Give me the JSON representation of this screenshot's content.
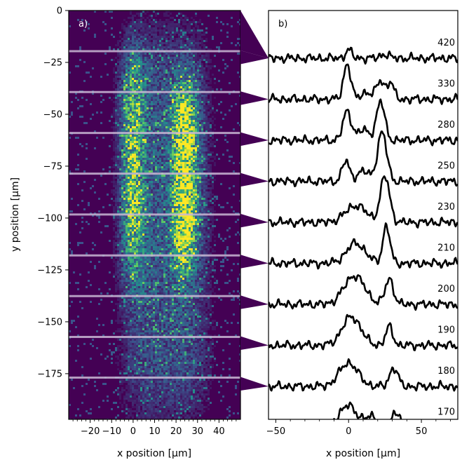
{
  "chart_data": [
    {
      "panel": "a)",
      "type": "heatmap",
      "xlabel": "x position [µm]",
      "ylabel": "y position [µm]",
      "xlim": [
        -30,
        50
      ],
      "ylim": [
        -197,
        0
      ],
      "xticks": [
        -20,
        -10,
        0,
        10,
        20,
        30,
        40
      ],
      "yticks": [
        0,
        -25,
        -50,
        -75,
        -100,
        -125,
        -150,
        -175
      ],
      "colormap": "viridis",
      "colors": {
        "background": "#440154",
        "band": "#3b528b",
        "bright": "#fde725",
        "mid": "#35b779",
        "cut_line": "#c9b8d4"
      },
      "intensity_features": [
        {
          "name": "left-lobe",
          "x_center": 0,
          "y_range": [
            -20,
            -130
          ],
          "peak_level": 0.6
        },
        {
          "name": "right-lobe",
          "x_center": 24,
          "y_range": [
            -35,
            -125
          ],
          "peak_level": 0.95
        },
        {
          "name": "speckle-column",
          "x_range": [
            -5,
            35
          ],
          "y_range": [
            -10,
            -197
          ],
          "peak_level": 0.3
        }
      ],
      "cut_positions_y": [
        -19.6,
        -39.3,
        -59.0,
        -78.6,
        -98.3,
        -118.0,
        -137.6,
        -157.3,
        -176.9
      ]
    },
    {
      "panel": "b)",
      "type": "line",
      "xlabel": "x position [µm]",
      "xlim": [
        -55,
        75
      ],
      "xticks": [
        -50,
        0,
        50
      ],
      "series": [
        {
          "name": "420",
          "peaks": [
            {
              "x": 0,
              "h": 0.25,
              "w": 3
            },
            {
              "x": 25,
              "h": 0.12,
              "w": 4
            }
          ]
        },
        {
          "name": "330",
          "peaks": [
            {
              "x": -1,
              "h": 1.05,
              "w": 3.5
            },
            {
              "x": 22,
              "h": 0.55,
              "w": 4
            },
            {
              "x": 29,
              "h": 0.5,
              "w": 3
            },
            {
              "x": 12,
              "h": 0.2,
              "w": 5
            }
          ]
        },
        {
          "name": "280",
          "peaks": [
            {
              "x": -1,
              "h": 0.85,
              "w": 4
            },
            {
              "x": 10,
              "h": 0.3,
              "w": 6
            },
            {
              "x": 22,
              "h": 1.15,
              "w": 4
            }
          ]
        },
        {
          "name": "250",
          "peaks": [
            {
              "x": -2,
              "h": 0.6,
              "w": 3.5
            },
            {
              "x": 10,
              "h": 0.3,
              "w": 6
            },
            {
              "x": 23,
              "h": 1.45,
              "w": 4.5
            }
          ]
        },
        {
          "name": "230",
          "peaks": [
            {
              "x": 5,
              "h": 0.5,
              "w": 10
            },
            {
              "x": 25,
              "h": 1.35,
              "w": 4.5
            }
          ]
        },
        {
          "name": "210",
          "peaks": [
            {
              "x": 5,
              "h": 0.6,
              "w": 9
            },
            {
              "x": 26,
              "h": 1.1,
              "w": 3.5
            }
          ]
        },
        {
          "name": "200",
          "peaks": [
            {
              "x": 4,
              "h": 0.85,
              "w": 10
            },
            {
              "x": 28,
              "h": 0.75,
              "w": 4
            }
          ]
        },
        {
          "name": "190",
          "peaks": [
            {
              "x": 2,
              "h": 0.85,
              "w": 9
            },
            {
              "x": 28,
              "h": 0.55,
              "w": 3.5
            }
          ]
        },
        {
          "name": "180",
          "peaks": [
            {
              "x": 0,
              "h": 0.7,
              "w": 9
            },
            {
              "x": 31,
              "h": 0.55,
              "w": 4
            }
          ]
        },
        {
          "name": "170",
          "peaks": [
            {
              "x": -1,
              "h": 0.65,
              "w": 8
            },
            {
              "x": 15,
              "h": 0.3,
              "w": 8
            },
            {
              "x": 33,
              "h": 0.45,
              "w": 4
            }
          ]
        }
      ],
      "noise_amplitude": 0.1,
      "line_color": "#000000"
    }
  ]
}
